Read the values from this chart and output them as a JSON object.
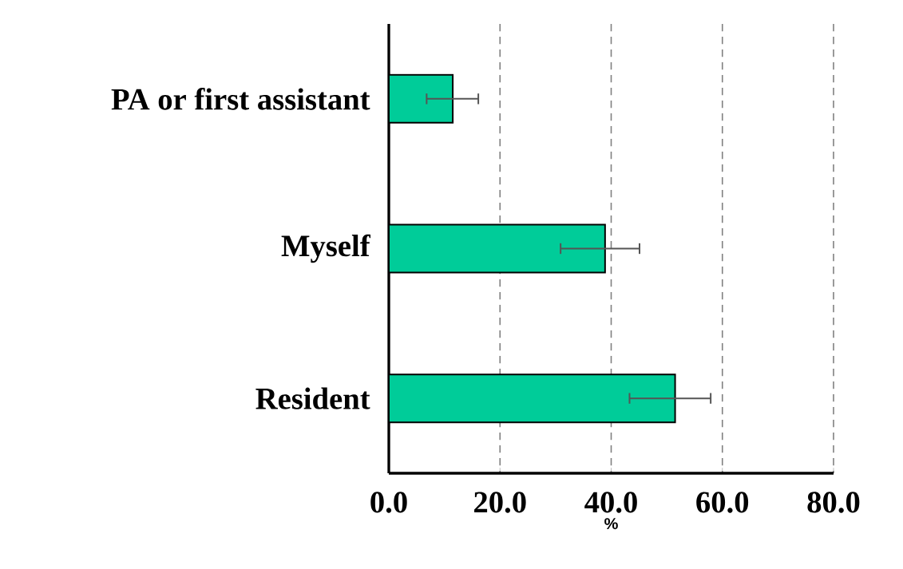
{
  "chart_data": {
    "type": "bar",
    "orientation": "horizontal",
    "categories": [
      "PA or first assistant",
      "Myself",
      "Resident"
    ],
    "values": [
      11.5,
      38.9,
      51.5
    ],
    "errors": [
      [
        6.8,
        16.1
      ],
      [
        30.9,
        45.1
      ],
      [
        43.3,
        57.9
      ]
    ],
    "color": "#00cc99",
    "xlabel": "%",
    "xlim": [
      0,
      80
    ],
    "xticks": [
      {
        "value": 0,
        "label": "0.0"
      },
      {
        "value": 20,
        "label": "20.0"
      },
      {
        "value": 40,
        "label": "40.0"
      },
      {
        "value": 60,
        "label": "60.0"
      },
      {
        "value": 80,
        "label": "80.0"
      }
    ],
    "grid": "x"
  }
}
